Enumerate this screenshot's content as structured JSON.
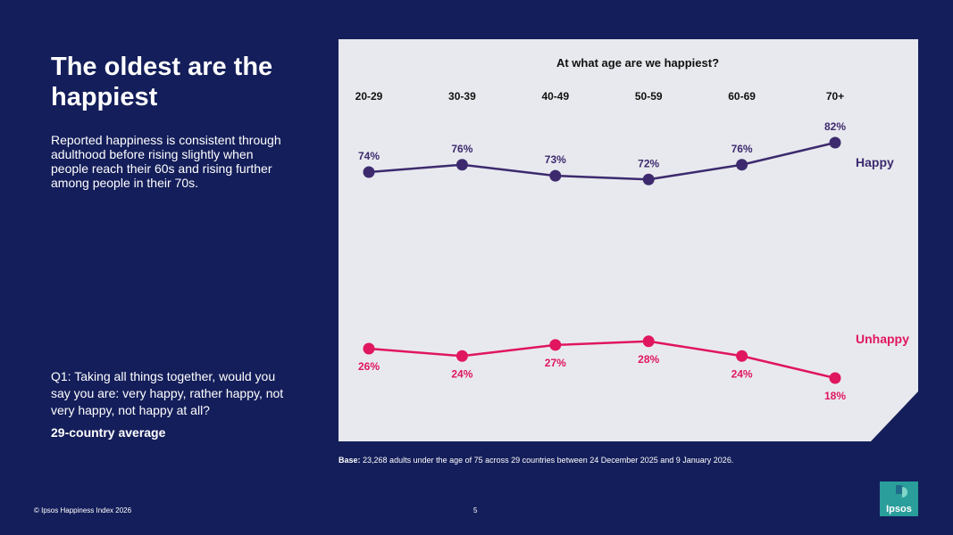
{
  "slide": {
    "title": "The oldest are the happiest",
    "intro": "Reported happiness is consistent through adulthood before rising slightly when people reach their 60s and rising further among people in their 70s.",
    "question": "Q1: Taking all things together, would you say you are: very happy, rather happy, not very happy, not happy at all?",
    "average_label": "29-country average",
    "base_label": "Base:",
    "base_text": "23,268 adults under the age of 75 across 29 countries between  24 December 2025 and 9 January 2026.",
    "footer": "© Ipsos Happiness Index 2026",
    "page_number": "5",
    "logo_text": "Ipsos"
  },
  "colors": {
    "background": "#141e5a",
    "panel": "#e8e9ee",
    "happy": "#3d2a6e",
    "unhappy": "#e0165f",
    "logo": "#2a9e9a"
  },
  "chart_data": {
    "type": "line",
    "title": "At what age are we happiest?",
    "categories": [
      "20-29",
      "30-39",
      "40-49",
      "50-59",
      "60-69",
      "70+"
    ],
    "series": [
      {
        "name": "Happy",
        "values": [
          74,
          76,
          73,
          72,
          76,
          82
        ],
        "labels": [
          "74%",
          "76%",
          "73%",
          "72%",
          "76%",
          "82%"
        ]
      },
      {
        "name": "Unhappy",
        "values": [
          26,
          24,
          27,
          28,
          24,
          18
        ],
        "labels": [
          "26%",
          "24%",
          "27%",
          "28%",
          "24%",
          "18%"
        ]
      }
    ],
    "xlabel": "",
    "ylabel": "",
    "ylim": [
      0,
      100
    ],
    "grid": false,
    "legend": "right, inline at line ends"
  }
}
